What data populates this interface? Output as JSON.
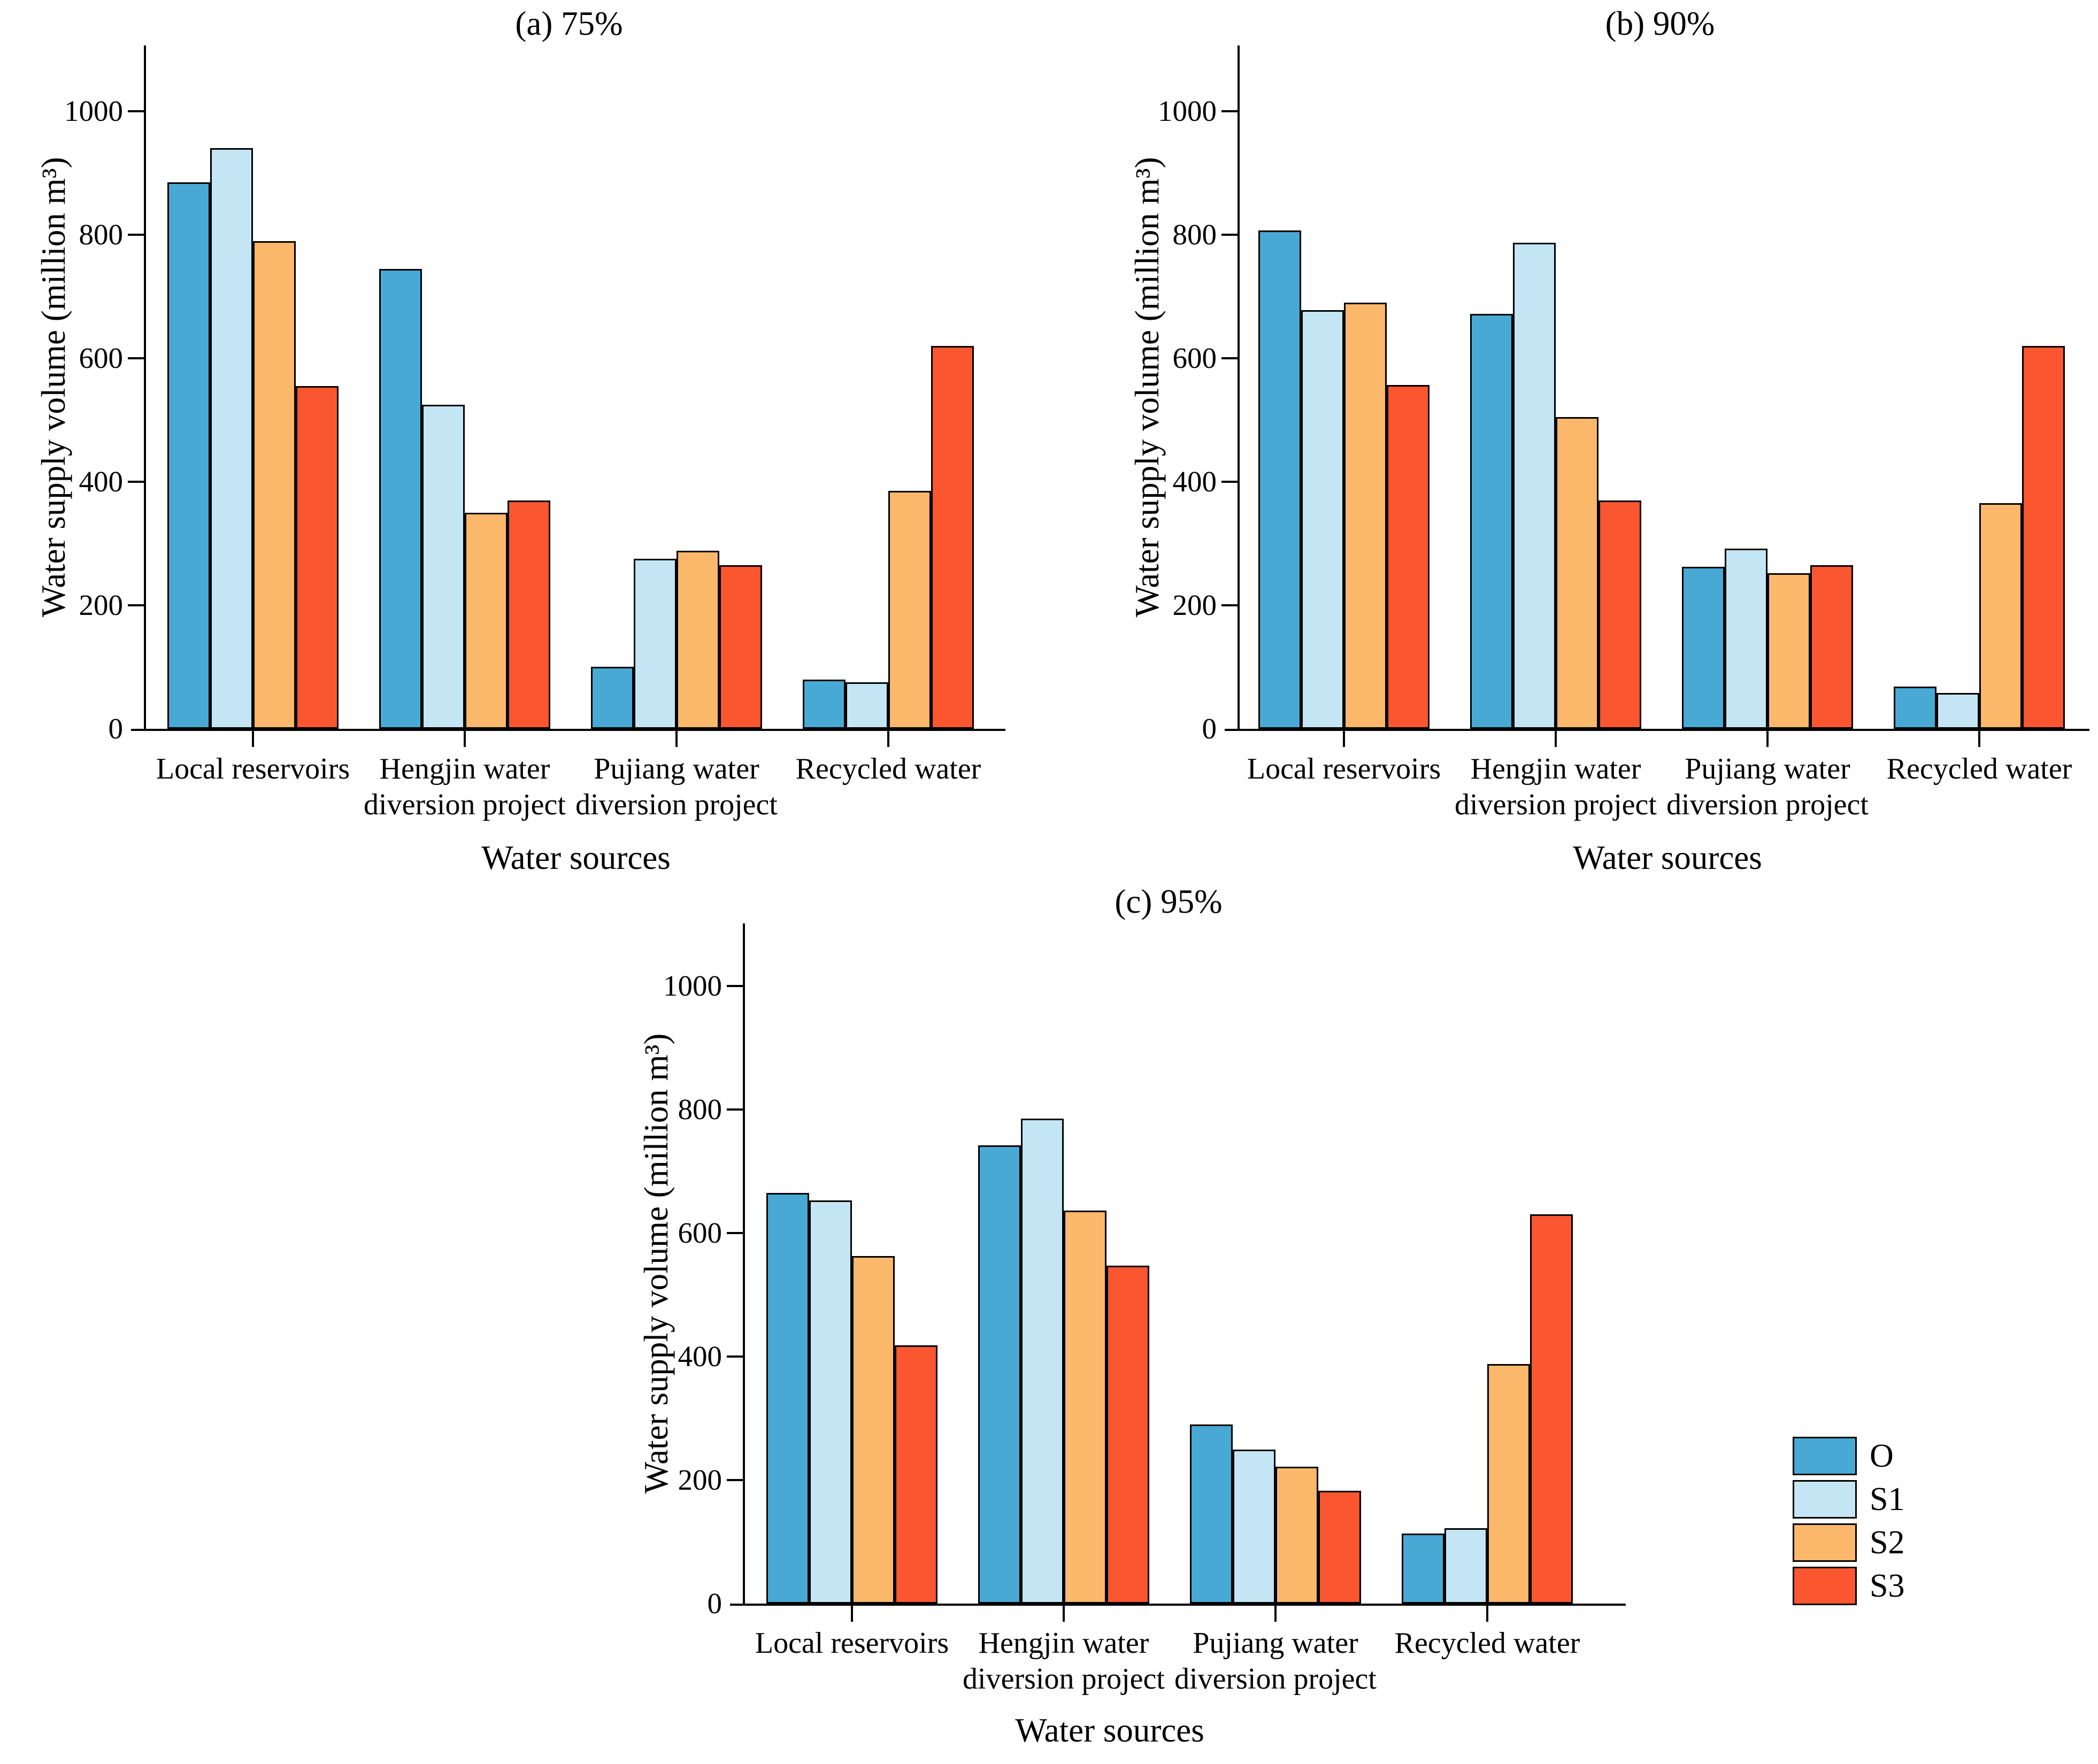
{
  "figure": {
    "background": "#ffffff",
    "axis_color": "#000000"
  },
  "legend": {
    "position": "bottom-right",
    "entries": [
      {
        "label": "O",
        "color": "#47A9D4"
      },
      {
        "label": "S1",
        "color": "#C4E6F4"
      },
      {
        "label": "S2",
        "color": "#FBB86A"
      },
      {
        "label": "S3",
        "color": "#FA5630"
      }
    ]
  },
  "chart_data": [
    {
      "type": "bar",
      "panel": "a",
      "title": "(a) 75%",
      "xlabel": "Water sources",
      "ylabel": "Water supply volume (million m³)",
      "ylim": [
        0,
        1100
      ],
      "yticks": [
        0,
        200,
        400,
        600,
        800,
        1000
      ],
      "grid": false,
      "categories": [
        "Local reservoirs",
        "Hengjin water\ndiversion project",
        "Pujiang water\ndiversion project",
        "Recycled water"
      ],
      "series": [
        {
          "name": "O",
          "values": [
            885,
            745,
            100,
            80
          ]
        },
        {
          "name": "S1",
          "values": [
            940,
            525,
            275,
            75
          ]
        },
        {
          "name": "S2",
          "values": [
            790,
            350,
            288,
            385
          ]
        },
        {
          "name": "S3",
          "values": [
            555,
            370,
            265,
            620
          ]
        }
      ]
    },
    {
      "type": "bar",
      "panel": "b",
      "title": "(b) 90%",
      "xlabel": "Water sources",
      "ylabel": "Water supply volume (million m³)",
      "ylim": [
        0,
        1100
      ],
      "yticks": [
        0,
        200,
        400,
        600,
        800,
        1000
      ],
      "grid": false,
      "categories": [
        "Local reservoirs",
        "Hengjin water\ndiversion project",
        "Pujiang water\ndiversion project",
        "Recycled water"
      ],
      "series": [
        {
          "name": "O",
          "values": [
            807,
            672,
            262,
            68
          ]
        },
        {
          "name": "S1",
          "values": [
            678,
            787,
            292,
            58
          ]
        },
        {
          "name": "S2",
          "values": [
            690,
            505,
            252,
            365
          ]
        },
        {
          "name": "S3",
          "values": [
            557,
            370,
            265,
            620
          ]
        }
      ]
    },
    {
      "type": "bar",
      "panel": "c",
      "title": "(c) 95%",
      "xlabel": "Water sources",
      "ylabel": "Water supply volume (million m³)",
      "ylim": [
        0,
        1100
      ],
      "yticks": [
        0,
        200,
        400,
        600,
        800,
        1000
      ],
      "grid": false,
      "categories": [
        "Local reservoirs",
        "Hengjin water\ndiversion project",
        "Pujiang water\ndiversion project",
        "Recycled water"
      ],
      "series": [
        {
          "name": "O",
          "values": [
            665,
            742,
            290,
            113
          ]
        },
        {
          "name": "S1",
          "values": [
            653,
            785,
            249,
            122
          ]
        },
        {
          "name": "S2",
          "values": [
            563,
            636,
            222,
            388
          ]
        },
        {
          "name": "S3",
          "values": [
            418,
            547,
            183,
            630
          ]
        }
      ]
    }
  ]
}
